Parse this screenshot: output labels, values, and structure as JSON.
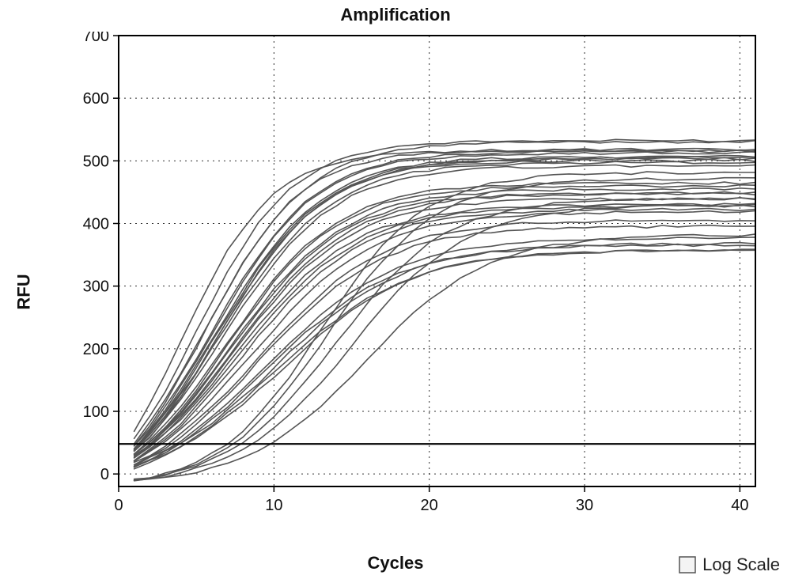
{
  "title": "Amplification",
  "title_fontsize": 22,
  "xlabel": "Cycles",
  "ylabel": "RFU",
  "label_fontsize": 22,
  "tick_fontsize": 20,
  "legend_label": "Log Scale",
  "legend_fontsize": 22,
  "legend_checked": false,
  "background_color": "#ffffff",
  "plot_bg": "#ffffff",
  "border_color": "#000000",
  "grid_color": "#303030",
  "grid_dash": "2 5",
  "line_color": "#555555",
  "line_width": 1.6,
  "threshold_color": "#000000",
  "threshold_width": 2.2,
  "threshold_value": 48,
  "xlim": [
    0,
    41
  ],
  "ylim": [
    -20,
    700
  ],
  "xticks": [
    0,
    10,
    20,
    30,
    40
  ],
  "yticks": [
    0,
    100,
    200,
    300,
    400,
    500,
    600,
    700
  ],
  "x_eval": [
    1,
    2,
    3,
    4,
    5,
    6,
    7,
    8,
    9,
    10,
    11,
    12,
    13,
    14,
    15,
    16,
    17,
    18,
    19,
    20,
    21,
    22,
    23,
    24,
    25,
    26,
    27,
    28,
    29,
    30,
    31,
    32,
    33,
    34,
    35,
    36,
    37,
    38,
    39,
    40,
    41
  ],
  "curves": [
    {
      "y0": 70,
      "a": 607,
      "c": 4.0,
      "k": 0.34
    },
    {
      "y0": 55,
      "a": 610,
      "c": 5.0,
      "k": 0.32
    },
    {
      "y0": 50,
      "a": 605,
      "c": 5.5,
      "k": 0.3
    },
    {
      "y0": 45,
      "a": 585,
      "c": 5.5,
      "k": 0.32
    },
    {
      "y0": 45,
      "a": 575,
      "c": 6.0,
      "k": 0.3
    },
    {
      "y0": 40,
      "a": 578,
      "c": 6.0,
      "k": 0.3
    },
    {
      "y0": 40,
      "a": 570,
      "c": 6.2,
      "k": 0.29
    },
    {
      "y0": 40,
      "a": 565,
      "c": 6.3,
      "k": 0.29
    },
    {
      "y0": 38,
      "a": 560,
      "c": 6.5,
      "k": 0.29
    },
    {
      "y0": 38,
      "a": 558,
      "c": 6.5,
      "k": 0.28
    },
    {
      "y0": 35,
      "a": 555,
      "c": 6.5,
      "k": 0.3
    },
    {
      "y0": 35,
      "a": 550,
      "c": 6.7,
      "k": 0.28
    },
    {
      "y0": 33,
      "a": 512,
      "c": 7.0,
      "k": 0.28
    },
    {
      "y0": 30,
      "a": 510,
      "c": 7.0,
      "k": 0.28
    },
    {
      "y0": 30,
      "a": 505,
      "c": 7.2,
      "k": 0.27
    },
    {
      "y0": 28,
      "a": 500,
      "c": 7.2,
      "k": 0.27
    },
    {
      "y0": 28,
      "a": 492,
      "c": 7.5,
      "k": 0.27
    },
    {
      "y0": 26,
      "a": 485,
      "c": 7.5,
      "k": 0.27
    },
    {
      "y0": 25,
      "a": 480,
      "c": 7.5,
      "k": 0.26
    },
    {
      "y0": 22,
      "a": 475,
      "c": 7.8,
      "k": 0.26
    },
    {
      "y0": 20,
      "a": 468,
      "c": 8.0,
      "k": 0.26
    },
    {
      "y0": 20,
      "a": 460,
      "c": 8.5,
      "k": 0.25
    },
    {
      "y0": 18,
      "a": 440,
      "c": 9.0,
      "k": 0.25
    },
    {
      "y0": 15,
      "a": 432,
      "c": 9.0,
      "k": 0.25
    },
    {
      "y0": 14,
      "a": 410,
      "c": 9.5,
      "k": 0.24
    },
    {
      "y0": 12,
      "a": 400,
      "c": 9.5,
      "k": 0.24
    },
    {
      "y0": 12,
      "a": 397,
      "c": 10.0,
      "k": 0.24
    },
    {
      "y0": 10,
      "a": 392,
      "c": 10.0,
      "k": 0.23
    },
    {
      "y0": 12,
      "a": 380,
      "c": 10.5,
      "k": 0.24
    },
    {
      "y0": -10,
      "a": 505,
      "c": 13.0,
      "k": 0.3
    },
    {
      "y0": -10,
      "a": 495,
      "c": 13.5,
      "k": 0.29
    },
    {
      "y0": -10,
      "a": 462,
      "c": 14.0,
      "k": 0.28
    },
    {
      "y0": -10,
      "a": 450,
      "c": 15.0,
      "k": 0.27
    },
    {
      "y0": -10,
      "a": 400,
      "c": 16.0,
      "k": 0.26
    }
  ]
}
